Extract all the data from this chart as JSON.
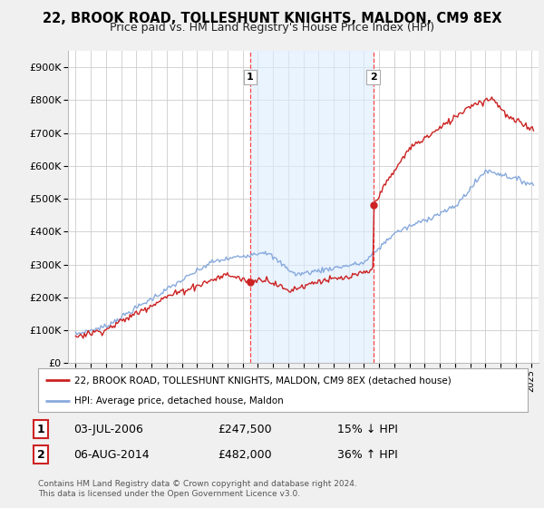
{
  "title": "22, BROOK ROAD, TOLLESHUNT KNIGHTS, MALDON, CM9 8EX",
  "subtitle": "Price paid vs. HM Land Registry's House Price Index (HPI)",
  "bg_color": "#f0f0f0",
  "plot_bg_color": "#ffffff",
  "legend_label_red": "22, BROOK ROAD, TOLLESHUNT KNIGHTS, MALDON, CM9 8EX (detached house)",
  "legend_label_blue": "HPI: Average price, detached house, Maldon",
  "footer": "Contains HM Land Registry data © Crown copyright and database right 2024.\nThis data is licensed under the Open Government Licence v3.0.",
  "annotation1_label": "1",
  "annotation1_date": "03-JUL-2006",
  "annotation1_price": "£247,500",
  "annotation1_hpi": "15% ↓ HPI",
  "annotation2_label": "2",
  "annotation2_date": "06-AUG-2014",
  "annotation2_price": "£482,000",
  "annotation2_hpi": "36% ↑ HPI",
  "vline1_x": 2006.5,
  "vline2_x": 2014.6,
  "sale1_x": 2006.5,
  "sale1_y": 247500,
  "sale2_x": 2014.6,
  "sale2_y": 482000,
  "ylim": [
    0,
    950000
  ],
  "xlim": [
    1994.5,
    2025.5
  ],
  "shade_color": "#ddeeff",
  "vline_color": "#ff4444"
}
